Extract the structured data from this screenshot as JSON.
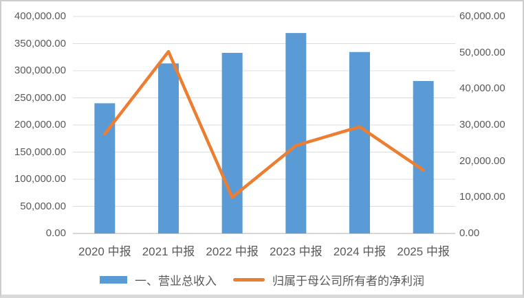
{
  "chart_data": {
    "type": "bar",
    "subtype": "combo-bar-line-dual-axis",
    "categories": [
      "2020 中报",
      "2021 中报",
      "2022 中报",
      "2023 中报",
      "2024 中报",
      "2025 中报"
    ],
    "series": [
      {
        "name": "一、营业总收入",
        "type": "bar",
        "axis": "left",
        "color": "#5B9BD5",
        "values": [
          240000,
          313500,
          333000,
          369500,
          334500,
          281000
        ]
      },
      {
        "name": "归属于母公司所有者的净利润",
        "type": "line",
        "axis": "right",
        "color": "#ED7D31",
        "values": [
          27500,
          50300,
          10000,
          24300,
          29500,
          17500
        ]
      }
    ],
    "left_axis": {
      "min": 0,
      "max": 400000,
      "step": 50000,
      "tick_labels": [
        "400,000.00",
        "350,000.00",
        "300,000.00",
        "250,000.00",
        "200,000.00",
        "150,000.00",
        "100,000.00",
        "50,000.00",
        "0.00"
      ]
    },
    "right_axis": {
      "min": 0,
      "max": 60000,
      "step": 10000,
      "tick_labels": [
        "60,000.00",
        "50,000.00",
        "40,000.00",
        "30,000.00",
        "20,000.00",
        "10,000.00",
        "0.00"
      ]
    },
    "title": "",
    "grid": true,
    "legend_position": "bottom",
    "styles": {
      "grid_color": "#DCDCDC",
      "axis_line_color": "#C9C9C9",
      "text_color": "#595959",
      "background": "#FFFFFF",
      "frame_border_color": "#CDCDCD"
    }
  }
}
